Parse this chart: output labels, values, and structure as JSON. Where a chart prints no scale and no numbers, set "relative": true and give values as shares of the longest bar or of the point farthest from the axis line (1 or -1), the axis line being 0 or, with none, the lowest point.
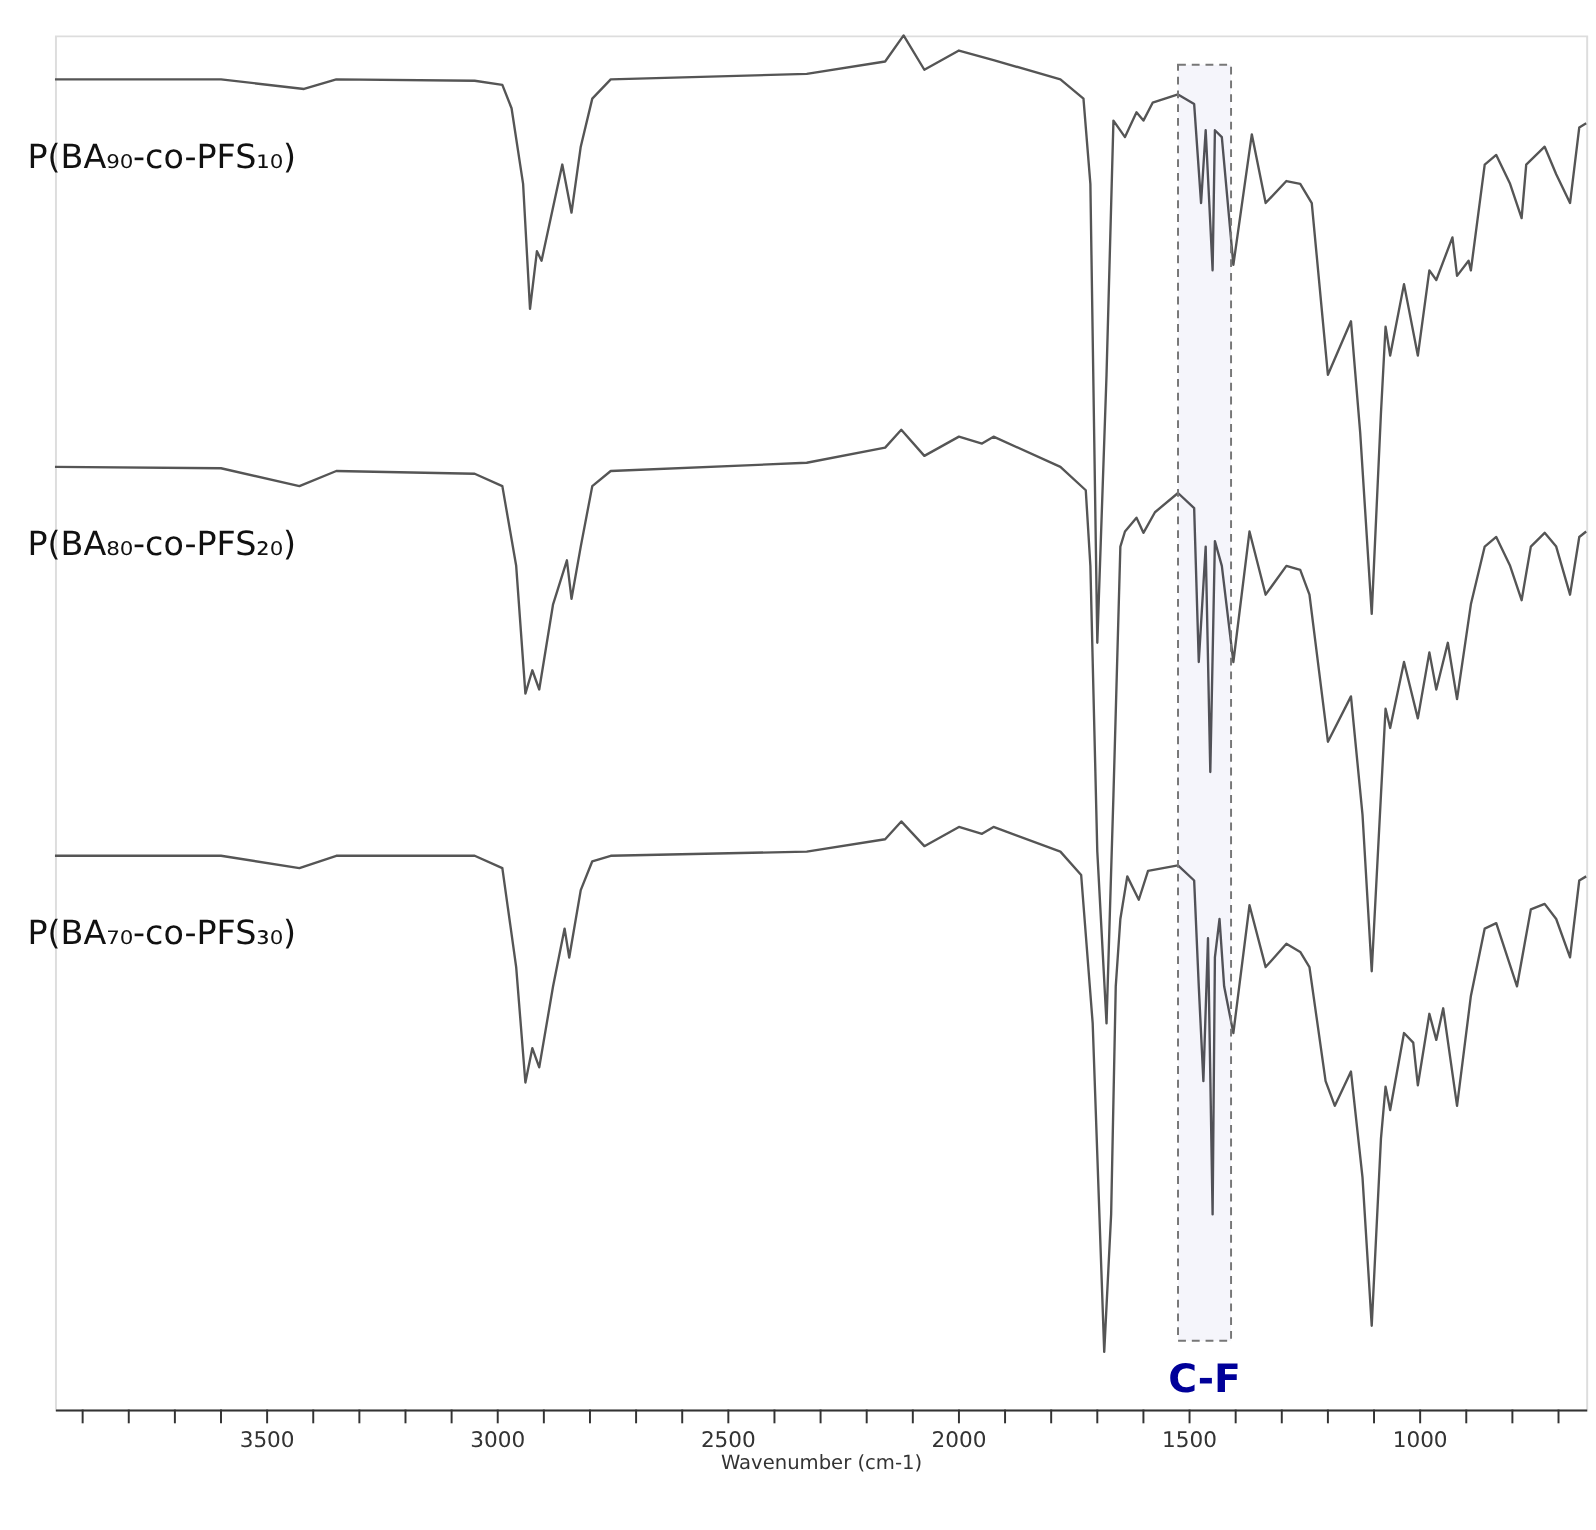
{
  "chart_data": {
    "type": "line",
    "relative": true,
    "xlabel": "Wavenumber (cm-1)",
    "xlim": [
      3960,
      640
    ],
    "xticks": [
      {
        "value": 3900,
        "label": null
      },
      {
        "value": 3800,
        "label": null
      },
      {
        "value": 3700,
        "label": null
      },
      {
        "value": 3600,
        "label": null
      },
      3500,
      {
        "value": 3400,
        "label": null
      },
      {
        "value": 3300,
        "label": null
      },
      {
        "value": 3200,
        "label": null
      },
      {
        "value": 3100,
        "label": null
      },
      3000,
      {
        "value": 2900,
        "label": null
      },
      {
        "value": 2800,
        "label": null
      },
      {
        "value": 2700,
        "label": null
      },
      {
        "value": 2600,
        "label": null
      },
      2500,
      {
        "value": 2400,
        "label": null
      },
      {
        "value": 2300,
        "label": null
      },
      {
        "value": 2200,
        "label": null
      },
      {
        "value": 2100,
        "label": null
      },
      2000,
      {
        "value": 1900,
        "label": null
      },
      {
        "value": 1800,
        "label": null
      },
      {
        "value": 1700,
        "label": null
      },
      {
        "value": 1600,
        "label": null
      },
      1500,
      {
        "value": 1400,
        "label": null
      },
      {
        "value": 1300,
        "label": null
      },
      {
        "value": 1200,
        "label": null
      },
      {
        "value": 1100,
        "label": null
      },
      1000,
      {
        "value": 900,
        "label": null
      },
      {
        "value": 800,
        "label": null
      },
      {
        "value": 700,
        "label": null
      }
    ],
    "bands": [
      {
        "axis": "x",
        "from": 1525,
        "to": 1410,
        "label": "C-F",
        "color": "#000099"
      }
    ],
    "line_style": "solid",
    "series": [
      {
        "name": "P(BA₉₀-co-PFS₁₀)",
        "color": "#555555",
        "x": [
          3960,
          3600,
          3420,
          3350,
          3050,
          2990,
          2970,
          2945,
          2930,
          2915,
          2905,
          2860,
          2840,
          2820,
          2795,
          2755,
          2330,
          2160,
          2120,
          2075,
          2000,
          1925,
          1780,
          1730,
          1715,
          1700,
          1680,
          1665,
          1640,
          1615,
          1600,
          1580,
          1525,
          1490,
          1475,
          1465,
          1450,
          1445,
          1430,
          1405,
          1365,
          1335,
          1290,
          1260,
          1235,
          1200,
          1150,
          1130,
          1105,
          1085,
          1075,
          1065,
          1035,
          1005,
          980,
          965,
          930,
          920,
          895,
          890,
          860,
          835,
          805,
          780,
          770,
          730,
          705,
          675,
          655,
          640
        ],
        "values": [
          0.968,
          0.968,
          0.961,
          0.968,
          0.967,
          0.964,
          0.947,
          0.892,
          0.801,
          0.843,
          0.836,
          0.906,
          0.871,
          0.919,
          0.954,
          0.968,
          0.972,
          0.981,
          1.0,
          0.975,
          0.989,
          0.982,
          0.968,
          0.954,
          0.892,
          0.558,
          0.753,
          0.938,
          0.926,
          0.944,
          0.938,
          0.951,
          0.957,
          0.95,
          0.878,
          0.931,
          0.829,
          0.931,
          0.926,
          0.833,
          0.928,
          0.878,
          0.894,
          0.892,
          0.878,
          0.753,
          0.792,
          0.711,
          0.579,
          0.725,
          0.788,
          0.767,
          0.819,
          0.767,
          0.829,
          0.822,
          0.853,
          0.825,
          0.836,
          0.829,
          0.906,
          0.913,
          0.892,
          0.867,
          0.906,
          0.919,
          0.899,
          0.878,
          0.933,
          0.936
        ]
      },
      {
        "name": "P(BA₈₀-co-PFS₂₀)",
        "color": "#555555",
        "x": [
          3960,
          3600,
          3430,
          3350,
          3050,
          2990,
          2960,
          2940,
          2925,
          2910,
          2880,
          2850,
          2840,
          2820,
          2795,
          2755,
          2330,
          2160,
          2125,
          2075,
          2000,
          1950,
          1925,
          1780,
          1725,
          1715,
          1700,
          1680,
          1665,
          1650,
          1640,
          1615,
          1600,
          1575,
          1525,
          1490,
          1480,
          1465,
          1455,
          1445,
          1430,
          1405,
          1370,
          1335,
          1290,
          1260,
          1240,
          1200,
          1150,
          1125,
          1105,
          1085,
          1075,
          1065,
          1035,
          1005,
          980,
          965,
          940,
          920,
          890,
          860,
          835,
          805,
          780,
          760,
          730,
          705,
          675,
          655,
          640
        ],
        "values": [
          0.686,
          0.685,
          0.672,
          0.683,
          0.681,
          0.672,
          0.614,
          0.521,
          0.538,
          0.524,
          0.586,
          0.618,
          0.59,
          0.628,
          0.672,
          0.683,
          0.689,
          0.7,
          0.713,
          0.694,
          0.708,
          0.703,
          0.708,
          0.686,
          0.669,
          0.614,
          0.406,
          0.281,
          0.447,
          0.628,
          0.639,
          0.649,
          0.638,
          0.653,
          0.667,
          0.656,
          0.544,
          0.628,
          0.464,
          0.632,
          0.614,
          0.544,
          0.639,
          0.593,
          0.614,
          0.611,
          0.593,
          0.486,
          0.519,
          0.433,
          0.319,
          0.447,
          0.51,
          0.496,
          0.544,
          0.503,
          0.551,
          0.524,
          0.558,
          0.517,
          0.586,
          0.628,
          0.635,
          0.614,
          0.589,
          0.628,
          0.638,
          0.628,
          0.593,
          0.635,
          0.639
        ]
      },
      {
        "name": "P(BA₇₀-co-PFS₃₀)",
        "color": "#555555",
        "x": [
          3960,
          3600,
          3430,
          3350,
          3050,
          2990,
          2960,
          2940,
          2925,
          2910,
          2880,
          2855,
          2845,
          2820,
          2795,
          2755,
          2330,
          2160,
          2125,
          2075,
          2000,
          1950,
          1925,
          1780,
          1735,
          1710,
          1685,
          1670,
          1660,
          1650,
          1635,
          1610,
          1590,
          1525,
          1490,
          1480,
          1470,
          1460,
          1450,
          1445,
          1435,
          1425,
          1405,
          1370,
          1335,
          1290,
          1260,
          1240,
          1205,
          1185,
          1150,
          1125,
          1105,
          1085,
          1075,
          1065,
          1035,
          1015,
          1005,
          980,
          965,
          950,
          920,
          890,
          860,
          835,
          790,
          760,
          730,
          705,
          675,
          655,
          640
        ],
        "values": [
          0.403,
          0.403,
          0.394,
          0.403,
          0.403,
          0.394,
          0.322,
          0.238,
          0.263,
          0.249,
          0.308,
          0.35,
          0.329,
          0.378,
          0.399,
          0.403,
          0.406,
          0.415,
          0.428,
          0.41,
          0.424,
          0.419,
          0.424,
          0.406,
          0.389,
          0.281,
          0.042,
          0.142,
          0.308,
          0.357,
          0.388,
          0.371,
          0.392,
          0.396,
          0.385,
          0.308,
          0.239,
          0.343,
          0.142,
          0.329,
          0.357,
          0.308,
          0.274,
          0.367,
          0.322,
          0.339,
          0.333,
          0.322,
          0.239,
          0.221,
          0.246,
          0.169,
          0.061,
          0.197,
          0.235,
          0.218,
          0.274,
          0.267,
          0.236,
          0.288,
          0.269,
          0.292,
          0.221,
          0.301,
          0.35,
          0.354,
          0.308,
          0.364,
          0.368,
          0.357,
          0.329,
          0.385,
          0.388
        ]
      }
    ]
  }
}
